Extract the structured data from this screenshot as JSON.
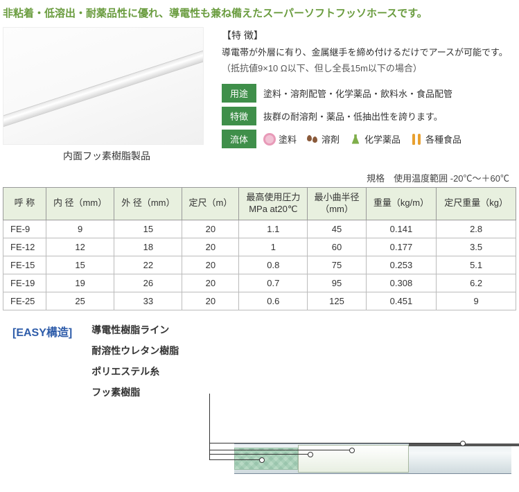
{
  "title": "非粘着・低溶出・耐薬品性に優れ、導電性も兼ね備えたスーパーソフトフッソホースです。",
  "image_caption": "内面フッ素樹脂製品",
  "feature_heading": "【特 徴】",
  "feature_line1": "導電帯が外層に有り、金属継手を締め付けるだけでアースが可能です。",
  "feature_line2": "（抵抗値9×10 Ω以下、但し全長15m以下の場合）",
  "tags": {
    "use": {
      "label": "用途",
      "text": "塗料・溶剤配管・化学薬品・飲料水・食品配管"
    },
    "feature": {
      "label": "特徴",
      "text": "抜群の耐溶剤・薬品・低抽出性を誇ります。"
    },
    "fluid": {
      "label": "流体"
    }
  },
  "fluids": [
    {
      "label": "塗料",
      "color": "#e89ab8"
    },
    {
      "label": "溶剤"
    },
    {
      "label": "化学薬品"
    },
    {
      "label": "各種食品"
    }
  ],
  "spec_label": "規格　使用温度範囲 -20℃～＋60℃",
  "table": {
    "headers": [
      "呼 称",
      "内 径（mm）",
      "外 径（mm）",
      "定尺（m）",
      "最高使用圧力\nMPa at20℃",
      "最小曲半径\n（mm）",
      "重量（kg/m）",
      "定尺重量（kg）"
    ],
    "rows": [
      [
        "FE-9",
        "9",
        "15",
        "20",
        "1.1",
        "45",
        "0.141",
        "2.8"
      ],
      [
        "FE-12",
        "12",
        "18",
        "20",
        "1",
        "60",
        "0.177",
        "3.5"
      ],
      [
        "FE-15",
        "15",
        "22",
        "20",
        "0.8",
        "75",
        "0.253",
        "5.1"
      ],
      [
        "FE-19",
        "19",
        "26",
        "20",
        "0.7",
        "95",
        "0.308",
        "6.2"
      ],
      [
        "FE-25",
        "25",
        "33",
        "20",
        "0.6",
        "125",
        "0.451",
        "9"
      ]
    ]
  },
  "easy": {
    "title": "[EASY構造]",
    "layers": [
      "導電性樹脂ライン",
      "耐溶性ウレタン樹脂",
      "ポリエステル糸",
      "フッ素樹脂"
    ]
  },
  "colors": {
    "accent_green": "#6a9c3f",
    "tag_green": "#3f8f4a",
    "header_bg": "#e8f0df",
    "easy_blue": "#2f5daa"
  }
}
